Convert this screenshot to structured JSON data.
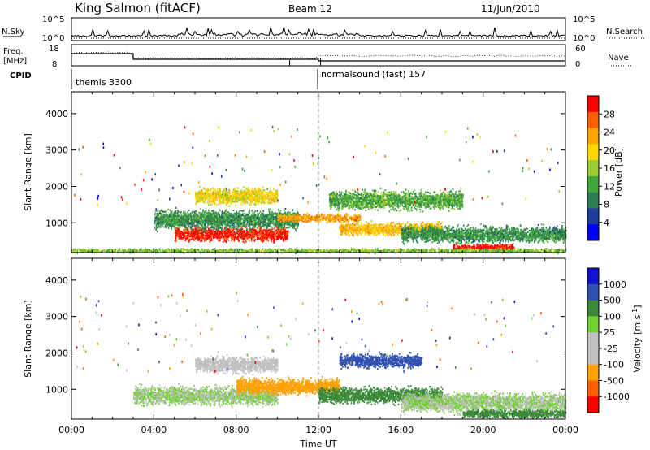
{
  "header": {
    "station": "King Salmon (fitACF)",
    "beam": "Beam 12",
    "date": "11/Jun/2010"
  },
  "nsky_panel": {
    "left_label": "N.Sky",
    "right_label": "N.Search",
    "left_ticks": [
      "10^5",
      "10^0"
    ],
    "right_ticks": [
      "10^5",
      "10^0"
    ]
  },
  "freq_panel": {
    "left_label_1": "Freq.",
    "left_label_2": "[MHz]",
    "right_label": "Nave",
    "left_ticks": [
      "18",
      "8"
    ],
    "right_ticks": [
      "60",
      "0"
    ]
  },
  "cpid_panel": {
    "label": "CPID",
    "programs": [
      {
        "name": "themis 3300",
        "start_hour": 0
      },
      {
        "name": "normalsound (fast) 157",
        "start_hour": 12
      }
    ]
  },
  "colors": {
    "power_scale": [
      "#0000ff",
      "#1e3ca0",
      "#2e7d4f",
      "#3ea83e",
      "#9acd32",
      "#ffd700",
      "#ffa500",
      "#ff6000",
      "#ff0000"
    ],
    "velocity_scale": [
      "#1010d0",
      "#3050b0",
      "#3a8a3a",
      "#70d030",
      "#c0c0c0",
      "#c0c0c0",
      "#ffa000",
      "#ff6000",
      "#ff0000"
    ]
  },
  "chart_data": [
    {
      "type": "heatmap",
      "panel": "power",
      "xlabel": "Time UT",
      "ylabel": "Slant Range [km]",
      "xlim": [
        0,
        24
      ],
      "ylim": [
        180,
        4600
      ],
      "x_ticks": [
        "00:00",
        "04:00",
        "08:00",
        "12:00",
        "16:00",
        "20:00",
        "00:00"
      ],
      "y_ticks": [
        1000,
        2000,
        3000,
        4000
      ],
      "colorbar": {
        "label": "Power [dB]",
        "ticks": [
          "4",
          "8",
          "12",
          "16",
          "20",
          "24",
          "28"
        ],
        "range": [
          0,
          30
        ]
      },
      "echo_regions": [
        {
          "t_start": 5.0,
          "t_end": 10.5,
          "range_center": 700,
          "range_width": 250,
          "value": 28
        },
        {
          "t_start": 4.0,
          "t_end": 11.0,
          "range_center": 1100,
          "range_width": 350,
          "value": 10
        },
        {
          "t_start": 6.0,
          "t_end": 10.0,
          "range_center": 1750,
          "range_width": 300,
          "value": 18
        },
        {
          "t_start": 10.0,
          "t_end": 14.0,
          "range_center": 1150,
          "range_width": 150,
          "value": 22
        },
        {
          "t_start": 13.0,
          "t_end": 18.0,
          "range_center": 850,
          "range_width": 250,
          "value": 20
        },
        {
          "t_start": 12.5,
          "t_end": 19.0,
          "range_center": 1650,
          "range_width": 350,
          "value": 12
        },
        {
          "t_start": 16.0,
          "t_end": 24.0,
          "range_center": 700,
          "range_width": 300,
          "value": 10
        },
        {
          "t_start": 18.5,
          "t_end": 21.5,
          "range_center": 350,
          "range_width": 120,
          "value": 28
        },
        {
          "t_start": 0.0,
          "t_end": 24.0,
          "range_center": 250,
          "range_width": 80,
          "value": 14
        }
      ]
    },
    {
      "type": "heatmap",
      "panel": "velocity",
      "xlabel": "Time UT",
      "ylabel": "Slant Range [km]",
      "xlim": [
        0,
        24
      ],
      "ylim": [
        180,
        4600
      ],
      "x_ticks": [
        "00:00",
        "04:00",
        "08:00",
        "12:00",
        "16:00",
        "20:00",
        "00:00"
      ],
      "y_ticks": [
        1000,
        2000,
        3000,
        4000
      ],
      "colorbar": {
        "label": "Velocity [m s",
        "label_exp": "-1",
        "label_tail": "]",
        "ticks": [
          "1000",
          "500",
          "100",
          "25",
          "-25",
          "-100",
          "-500",
          "-1000"
        ]
      },
      "echo_regions": [
        {
          "t_start": 3.0,
          "t_end": 10.0,
          "range_center": 850,
          "range_width": 350,
          "value": 0
        },
        {
          "t_start": 6.0,
          "t_end": 10.0,
          "range_center": 1700,
          "range_width": 300,
          "value": -50
        },
        {
          "t_start": 8.0,
          "t_end": 13.0,
          "range_center": 1100,
          "range_width": 300,
          "value": -300
        },
        {
          "t_start": 13.0,
          "t_end": 17.0,
          "range_center": 1800,
          "range_width": 250,
          "value": 300
        },
        {
          "t_start": 12.0,
          "t_end": 18.0,
          "range_center": 850,
          "range_width": 300,
          "value": 60
        },
        {
          "t_start": 16.0,
          "t_end": 24.0,
          "range_center": 650,
          "range_width": 350,
          "value": 0
        },
        {
          "t_start": 19.0,
          "t_end": 24.0,
          "range_center": 350,
          "range_width": 150,
          "value": 80
        }
      ]
    }
  ]
}
